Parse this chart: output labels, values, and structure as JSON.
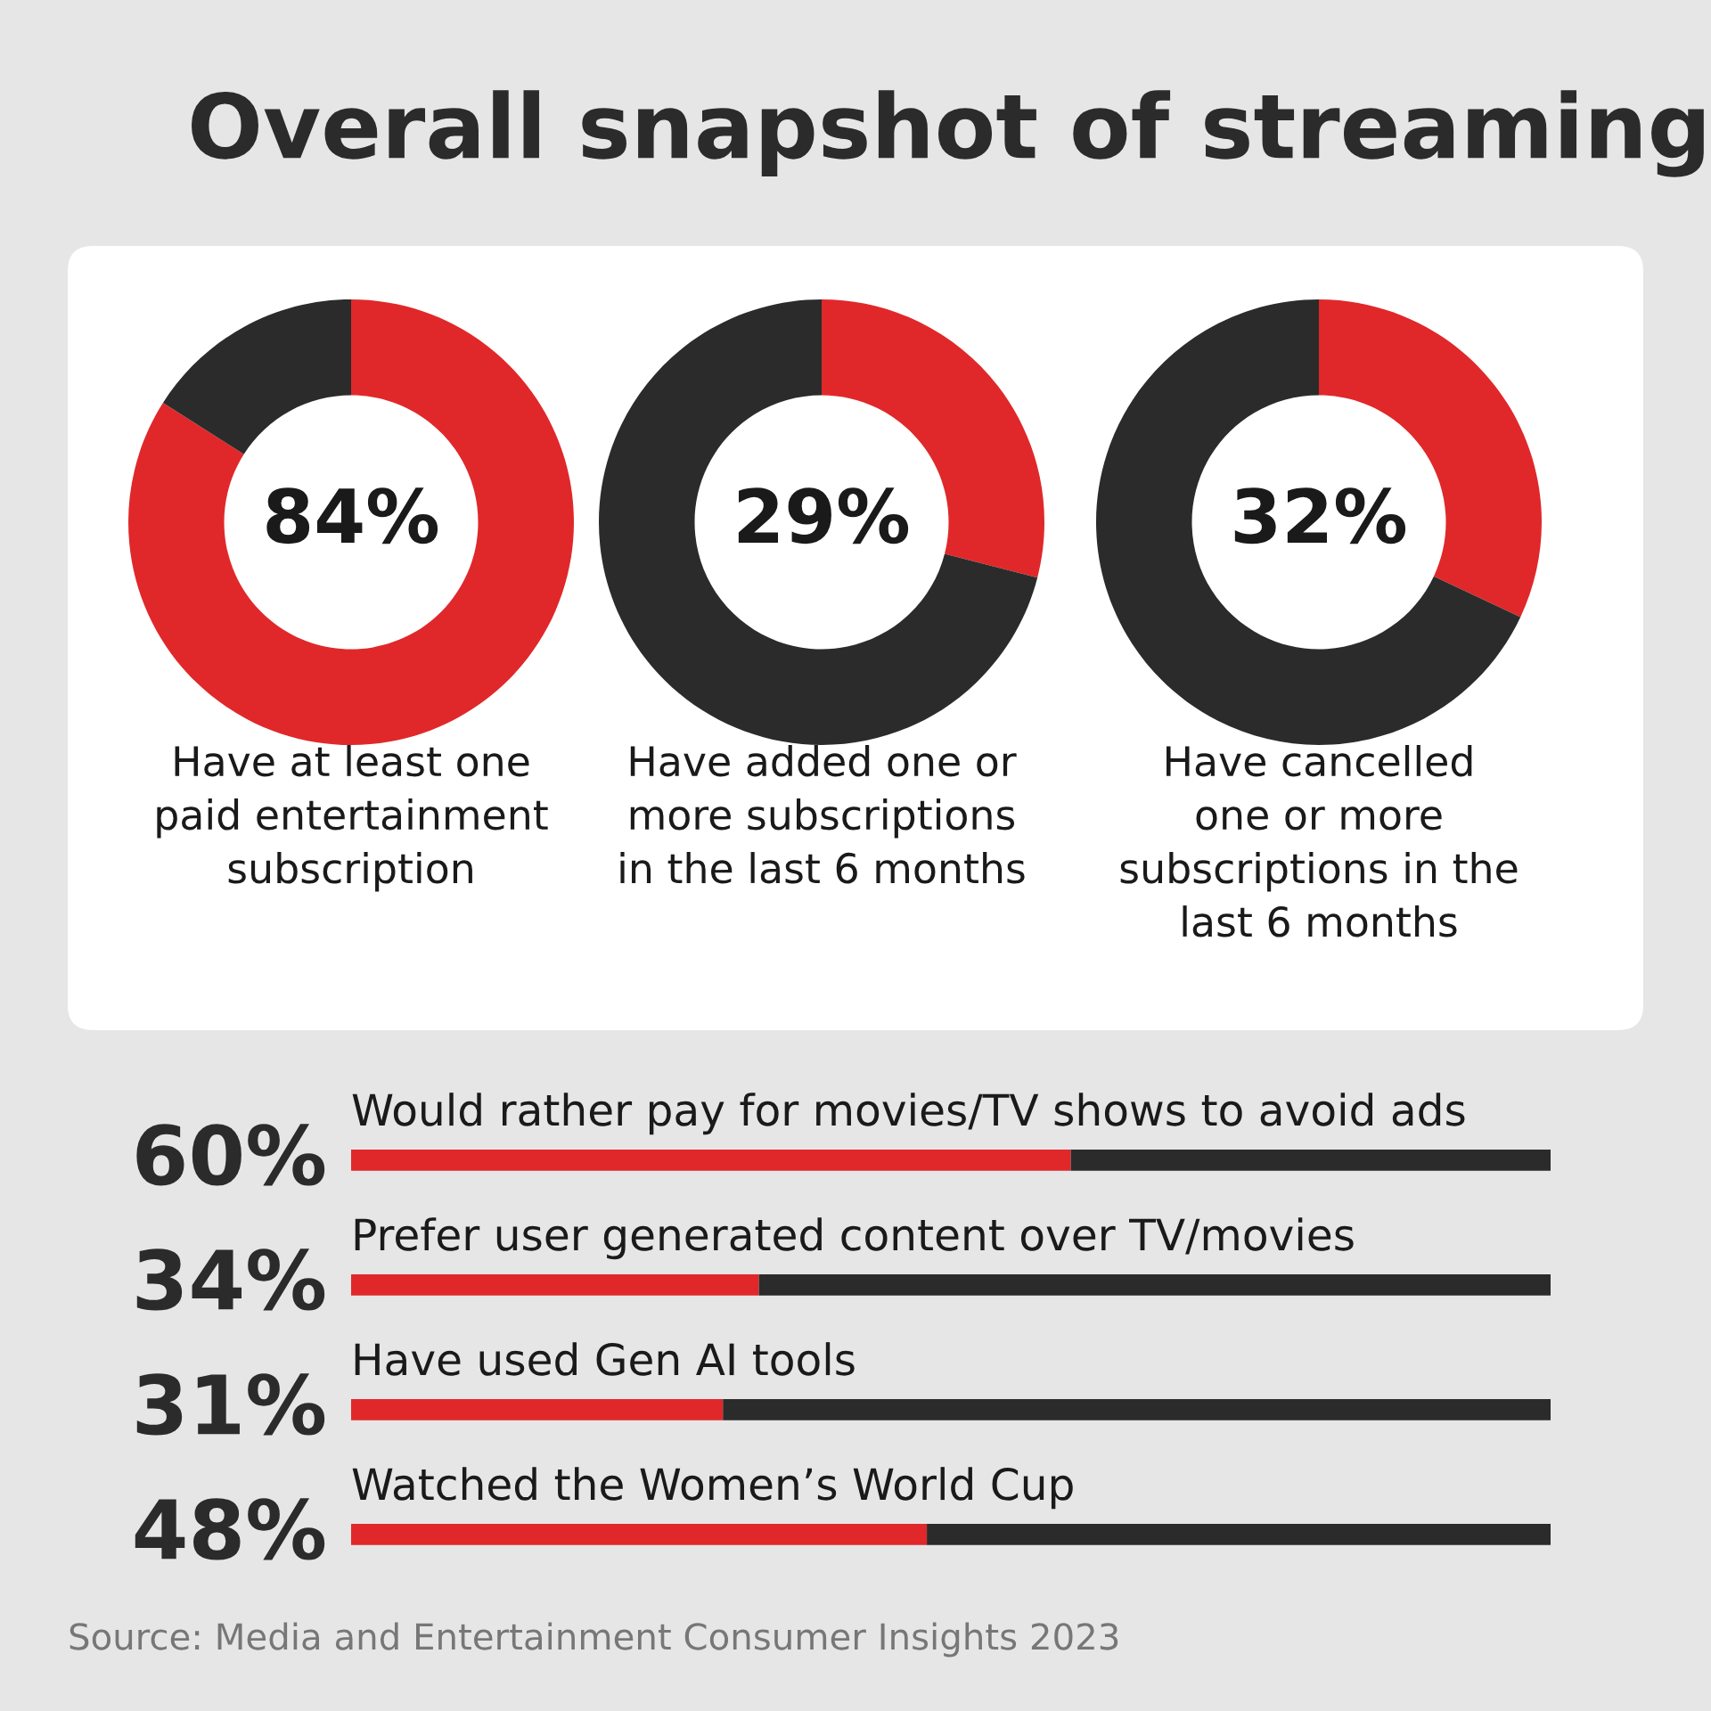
{
  "chart_data": [
    {
      "type": "donut",
      "title": "Overall snapshot of streaming",
      "xlabel": "Have at least one\npaid entertainment\nsubscription",
      "categories": [
        null,
        null
      ],
      "values": [
        84,
        16
      ],
      "colors": [
        "#e0282a",
        "#2b2b2b"
      ],
      "value_labels": [
        "84%",
        null
      ]
    },
    {
      "type": "donut",
      "xlabel": "Have added one or\nmore subscriptions\nin the last 6 months",
      "categories": [
        null,
        null
      ],
      "values": [
        29,
        71
      ],
      "colors": [
        "#e0282a",
        "#2b2b2b"
      ],
      "value_labels": [
        "29%",
        null
      ]
    },
    {
      "type": "donut",
      "xlabel": "Have cancelled\none or more\nsubscriptions in the\nlast 6 months",
      "categories": [
        null,
        null
      ],
      "values": [
        32,
        68
      ],
      "colors": [
        "#e0282a",
        "#2b2b2b"
      ],
      "value_labels": [
        "32%",
        null
      ]
    },
    {
      "type": "bar",
      "orientation": "horizontal",
      "stacked": true,
      "xlim": [
        0,
        100
      ],
      "categories": [
        "Would rather pay for movies/TV shows to avoid ads",
        "Prefer user generated content over TV/movies",
        "Have used Gen AI tools",
        "Watched the Women’s World Cup"
      ],
      "series": [
        {
          "color": "#e0282a",
          "values": [
            60,
            34,
            31,
            48
          ],
          "value_labels": [
            "60%",
            "34%",
            "31%",
            "48%"
          ]
        },
        {
          "color": "#2b2b2b",
          "values": [
            40,
            66,
            69,
            52
          ]
        }
      ],
      "annotations": [
        "Source: Media and Entertainment Consumer Insights 2023"
      ]
    }
  ]
}
